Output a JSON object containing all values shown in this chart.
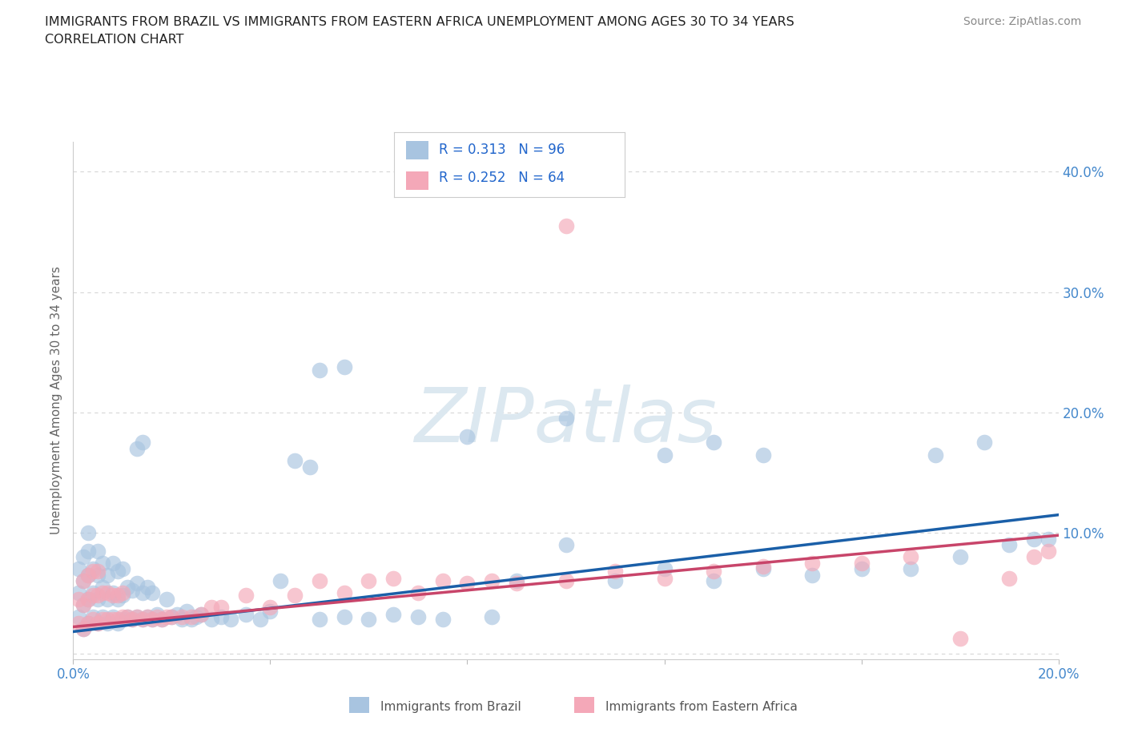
{
  "title_line1": "IMMIGRANTS FROM BRAZIL VS IMMIGRANTS FROM EASTERN AFRICA UNEMPLOYMENT AMONG AGES 30 TO 34 YEARS",
  "title_line2": "CORRELATION CHART",
  "source": "Source: ZipAtlas.com",
  "ylabel": "Unemployment Among Ages 30 to 34 years",
  "xlim": [
    0.0,
    0.2
  ],
  "ylim": [
    -0.005,
    0.425
  ],
  "xticks": [
    0.0,
    0.04,
    0.08,
    0.12,
    0.16,
    0.2
  ],
  "xtick_labels": [
    "0.0%",
    "",
    "",
    "",
    "",
    "20.0%"
  ],
  "yticks": [
    0.0,
    0.1,
    0.2,
    0.3,
    0.4
  ],
  "ytick_labels_right": [
    "",
    "10.0%",
    "20.0%",
    "30.0%",
    "40.0%"
  ],
  "brazil_R": 0.313,
  "brazil_N": 96,
  "africa_R": 0.252,
  "africa_N": 64,
  "brazil_color": "#a8c4e0",
  "africa_color": "#f4a8b8",
  "brazil_line_color": "#1a5fa8",
  "africa_line_color": "#c8456a",
  "watermark": "ZIPatlas",
  "watermark_color": "#dce8f0",
  "background_color": "#ffffff",
  "grid_color": "#cccccc",
  "brazil_line_start_y": 0.018,
  "brazil_line_end_y": 0.115,
  "africa_line_start_y": 0.022,
  "africa_line_end_y": 0.098,
  "brazil_x": [
    0.001,
    0.001,
    0.001,
    0.002,
    0.002,
    0.002,
    0.002,
    0.003,
    0.003,
    0.003,
    0.003,
    0.003,
    0.004,
    0.004,
    0.004,
    0.005,
    0.005,
    0.005,
    0.005,
    0.006,
    0.006,
    0.006,
    0.007,
    0.007,
    0.007,
    0.008,
    0.008,
    0.008,
    0.009,
    0.009,
    0.009,
    0.01,
    0.01,
    0.01,
    0.011,
    0.011,
    0.012,
    0.012,
    0.013,
    0.013,
    0.014,
    0.014,
    0.015,
    0.015,
    0.016,
    0.016,
    0.017,
    0.018,
    0.019,
    0.02,
    0.021,
    0.022,
    0.023,
    0.024,
    0.025,
    0.026,
    0.028,
    0.03,
    0.032,
    0.035,
    0.038,
    0.04,
    0.042,
    0.045,
    0.048,
    0.05,
    0.055,
    0.06,
    0.065,
    0.07,
    0.075,
    0.08,
    0.085,
    0.09,
    0.1,
    0.11,
    0.12,
    0.13,
    0.14,
    0.15,
    0.16,
    0.17,
    0.18,
    0.19,
    0.195,
    0.198,
    0.05,
    0.055,
    0.013,
    0.014,
    0.1,
    0.12,
    0.13,
    0.14,
    0.175,
    0.185
  ],
  "brazil_y": [
    0.03,
    0.05,
    0.07,
    0.02,
    0.04,
    0.06,
    0.08,
    0.025,
    0.045,
    0.065,
    0.085,
    0.1,
    0.03,
    0.05,
    0.07,
    0.025,
    0.045,
    0.065,
    0.085,
    0.03,
    0.055,
    0.075,
    0.025,
    0.045,
    0.065,
    0.03,
    0.05,
    0.075,
    0.025,
    0.045,
    0.068,
    0.028,
    0.048,
    0.07,
    0.03,
    0.055,
    0.028,
    0.052,
    0.03,
    0.058,
    0.028,
    0.05,
    0.03,
    0.055,
    0.028,
    0.05,
    0.032,
    0.028,
    0.045,
    0.03,
    0.032,
    0.028,
    0.035,
    0.028,
    0.03,
    0.032,
    0.028,
    0.03,
    0.028,
    0.032,
    0.028,
    0.035,
    0.06,
    0.16,
    0.155,
    0.028,
    0.03,
    0.028,
    0.032,
    0.03,
    0.028,
    0.18,
    0.03,
    0.06,
    0.09,
    0.06,
    0.07,
    0.06,
    0.07,
    0.065,
    0.07,
    0.07,
    0.08,
    0.09,
    0.095,
    0.095,
    0.235,
    0.238,
    0.17,
    0.175,
    0.195,
    0.165,
    0.175,
    0.165,
    0.165,
    0.175
  ],
  "africa_x": [
    0.001,
    0.001,
    0.002,
    0.002,
    0.002,
    0.003,
    0.003,
    0.003,
    0.004,
    0.004,
    0.004,
    0.005,
    0.005,
    0.005,
    0.006,
    0.006,
    0.007,
    0.007,
    0.008,
    0.008,
    0.009,
    0.009,
    0.01,
    0.01,
    0.011,
    0.012,
    0.013,
    0.014,
    0.015,
    0.016,
    0.017,
    0.018,
    0.019,
    0.02,
    0.022,
    0.024,
    0.026,
    0.028,
    0.03,
    0.035,
    0.04,
    0.045,
    0.05,
    0.055,
    0.06,
    0.065,
    0.07,
    0.075,
    0.08,
    0.085,
    0.09,
    0.1,
    0.11,
    0.12,
    0.13,
    0.14,
    0.15,
    0.16,
    0.17,
    0.18,
    0.19,
    0.195,
    0.198,
    0.1
  ],
  "africa_y": [
    0.025,
    0.045,
    0.02,
    0.04,
    0.06,
    0.025,
    0.045,
    0.065,
    0.028,
    0.048,
    0.068,
    0.025,
    0.048,
    0.068,
    0.028,
    0.05,
    0.028,
    0.05,
    0.028,
    0.048,
    0.028,
    0.048,
    0.03,
    0.05,
    0.03,
    0.028,
    0.03,
    0.028,
    0.03,
    0.028,
    0.03,
    0.028,
    0.03,
    0.03,
    0.03,
    0.03,
    0.032,
    0.038,
    0.038,
    0.048,
    0.038,
    0.048,
    0.06,
    0.05,
    0.06,
    0.062,
    0.05,
    0.06,
    0.058,
    0.06,
    0.058,
    0.06,
    0.068,
    0.062,
    0.068,
    0.072,
    0.075,
    0.075,
    0.08,
    0.012,
    0.062,
    0.08,
    0.085,
    0.355
  ]
}
